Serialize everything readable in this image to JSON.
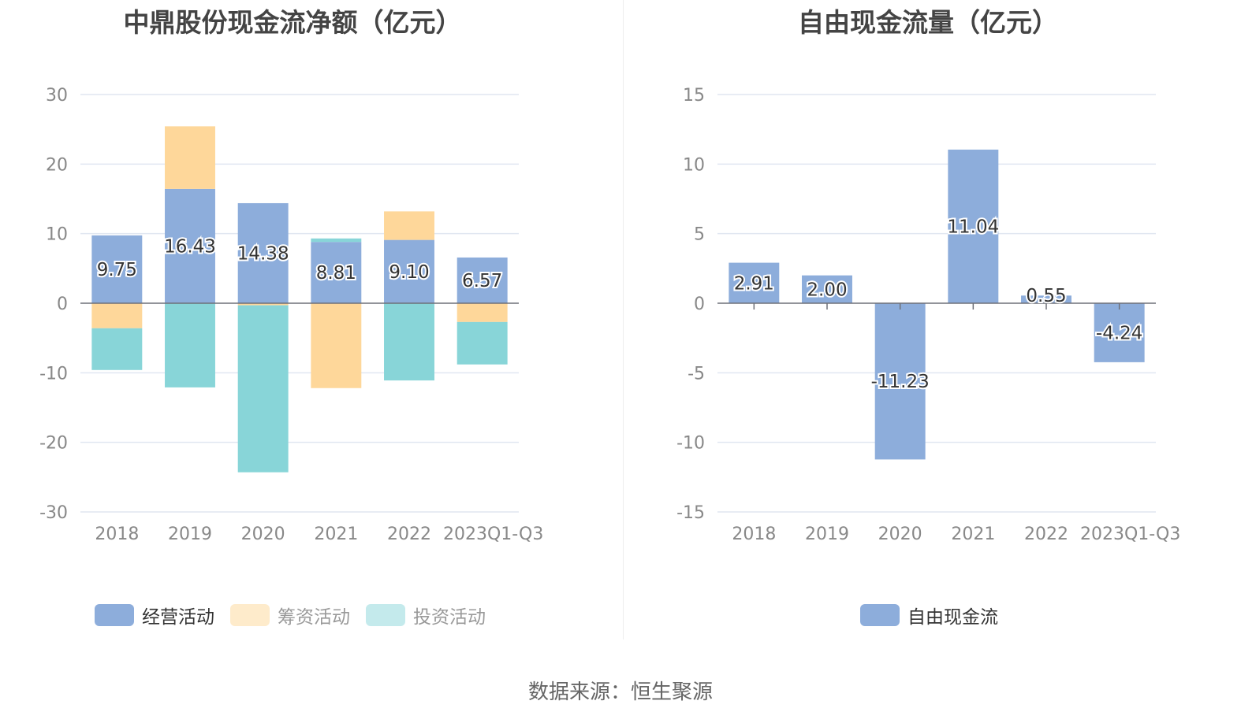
{
  "colors": {
    "operating": "#8daddb",
    "financing": "#fed79a",
    "investing": "#88d5d8",
    "free_cash_flow": "#8daddb",
    "legend_financing_faded": "#feebcb",
    "legend_investing_faded": "#c4eaec",
    "grid": "#e0e6f1",
    "zero_axis": "#6e7079"
  },
  "source_text": "数据来源：恒生聚源",
  "chart_data": [
    {
      "type": "bar",
      "stacked": true,
      "title": "中鼎股份现金流净额（亿元）",
      "xlabel": "",
      "ylabel": "",
      "categories": [
        "2018",
        "2019",
        "2020",
        "2021",
        "2022",
        "2023Q1-Q3"
      ],
      "ylim": [
        -30,
        30
      ],
      "yticks": [
        30,
        20,
        10,
        0,
        -10,
        -20,
        -30
      ],
      "grid": true,
      "legend_position": "bottom",
      "series": [
        {
          "name": "经营活动",
          "key": "operating",
          "values": [
            9.75,
            16.43,
            14.38,
            8.81,
            9.1,
            6.57
          ],
          "labels": [
            "9.75",
            "16.43",
            "14.38",
            "8.81",
            "9.10",
            "6.57"
          ],
          "legend_active": true
        },
        {
          "name": "筹资活动",
          "key": "financing",
          "values": [
            -3.6,
            9.0,
            -0.3,
            -12.2,
            4.1,
            -2.7
          ],
          "legend_active": false
        },
        {
          "name": "投资活动",
          "key": "investing",
          "values": [
            -6.0,
            -12.1,
            -24.0,
            0.5,
            -11.1,
            -6.1
          ],
          "legend_active": false
        }
      ]
    },
    {
      "type": "bar",
      "stacked": false,
      "title": "自由现金流量（亿元）",
      "xlabel": "",
      "ylabel": "",
      "categories": [
        "2018",
        "2019",
        "2020",
        "2021",
        "2022",
        "2023Q1-Q3"
      ],
      "ylim": [
        -15,
        15
      ],
      "yticks": [
        15,
        10,
        5,
        0,
        -5,
        -10,
        -15
      ],
      "grid": true,
      "legend_position": "bottom",
      "series": [
        {
          "name": "自由现金流",
          "key": "free_cash_flow",
          "values": [
            2.91,
            2.0,
            -11.23,
            11.04,
            0.55,
            -4.24
          ],
          "labels": [
            "2.91",
            "2.00",
            "-11.23",
            "11.04",
            "0.55",
            "-4.24"
          ],
          "legend_active": true
        }
      ]
    }
  ]
}
